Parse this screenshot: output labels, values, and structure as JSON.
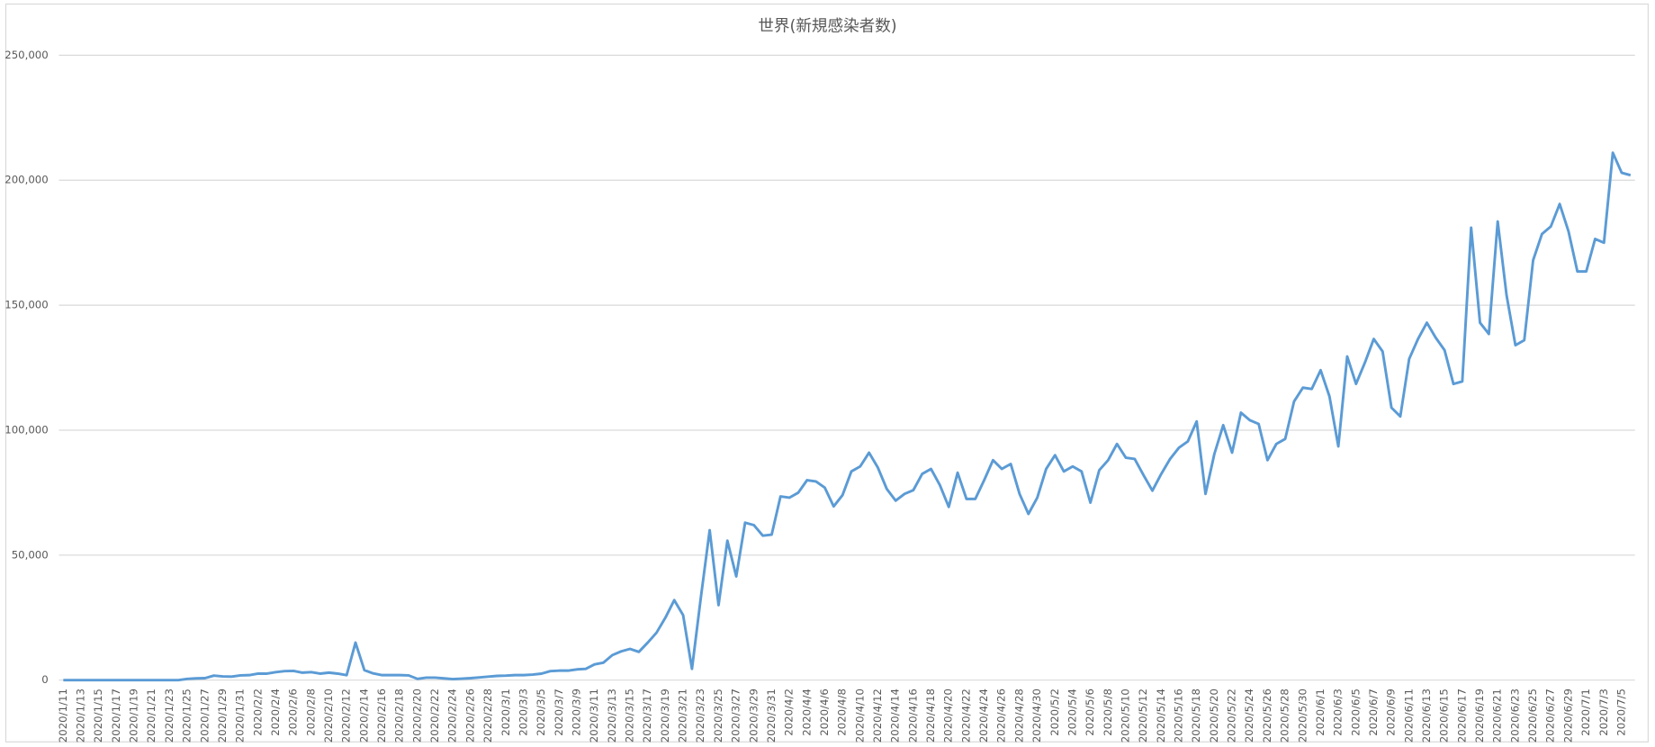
{
  "chart_data": {
    "type": "line",
    "title": "世界(新規感染者数)",
    "categories": [
      "2020/1/11",
      null,
      "2020/1/13",
      null,
      "2020/1/15",
      null,
      "2020/1/17",
      null,
      "2020/1/19",
      null,
      "2020/1/21",
      null,
      "2020/1/23",
      null,
      "2020/1/25",
      null,
      "2020/1/27",
      null,
      "2020/1/29",
      null,
      "2020/1/31",
      null,
      "2020/2/2",
      null,
      "2020/2/4",
      null,
      "2020/2/6",
      null,
      "2020/2/8",
      null,
      "2020/2/10",
      null,
      "2020/2/12",
      null,
      "2020/2/14",
      null,
      "2020/2/16",
      null,
      "2020/2/18",
      null,
      "2020/2/20",
      null,
      "2020/2/22",
      null,
      "2020/2/24",
      null,
      "2020/2/26",
      null,
      "2020/2/28",
      null,
      "2020/3/1",
      null,
      "2020/3/3",
      null,
      "2020/3/5",
      null,
      "2020/3/7",
      null,
      "2020/3/9",
      null,
      "2020/3/11",
      null,
      "2020/3/13",
      null,
      "2020/3/15",
      null,
      "2020/3/17",
      null,
      "2020/3/19",
      null,
      "2020/3/21",
      null,
      "2020/3/23",
      null,
      "2020/3/25",
      null,
      "2020/3/27",
      null,
      "2020/3/29",
      null,
      "2020/3/31",
      null,
      "2020/4/2",
      null,
      "2020/4/4",
      null,
      "2020/4/6",
      null,
      "2020/4/8",
      null,
      "2020/4/10",
      null,
      "2020/4/12",
      null,
      "2020/4/14",
      null,
      "2020/4/16",
      null,
      "2020/4/18",
      null,
      "2020/4/20",
      null,
      "2020/4/22",
      null,
      "2020/4/24",
      null,
      "2020/4/26",
      null,
      "2020/4/28",
      null,
      "2020/4/30",
      null,
      "2020/5/2",
      null,
      "2020/5/4",
      null,
      "2020/5/6",
      null,
      "2020/5/8",
      null,
      "2020/5/10",
      null,
      "2020/5/12",
      null,
      "2020/5/14",
      null,
      "2020/5/16",
      null,
      "2020/5/18",
      null,
      "2020/5/20",
      null,
      "2020/5/22",
      null,
      "2020/5/24",
      null,
      "2020/5/26",
      null,
      "2020/5/28",
      null,
      "2020/5/30",
      null,
      "2020/6/1",
      null,
      "2020/6/3",
      null,
      "2020/6/5",
      null,
      "2020/6/7",
      null,
      "2020/6/9",
      null,
      "2020/6/11",
      null,
      "2020/6/13",
      null,
      "2020/6/15",
      null,
      "2020/6/17",
      null,
      "2020/6/19",
      null,
      "2020/6/21",
      null,
      "2020/6/23",
      null,
      "2020/6/25",
      null,
      "2020/6/27",
      null,
      "2020/6/29",
      null,
      "2020/7/1",
      null,
      "2020/7/3",
      null,
      "2020/7/5",
      null
    ],
    "values": [
      0,
      0,
      0,
      0,
      0,
      0,
      0,
      0,
      0,
      0,
      0,
      0,
      0,
      0,
      500,
      700,
      800,
      1800,
      1500,
      1400,
      1900,
      2000,
      2600,
      2600,
      3200,
      3600,
      3700,
      3000,
      3200,
      2600,
      3000,
      2600,
      2000,
      15000,
      4000,
      2700,
      2000,
      2000,
      2000,
      1900,
      500,
      1000,
      1000,
      700,
      400,
      600,
      800,
      1100,
      1400,
      1700,
      1800,
      2000,
      2000,
      2200,
      2600,
      3600,
      3800,
      3800,
      4300,
      4500,
      6300,
      7000,
      10000,
      11500,
      12500,
      11300,
      15000,
      19000,
      25000,
      32000,
      26000,
      4500,
      33000,
      60000,
      30000,
      55800,
      41500,
      63000,
      62000,
      57800,
      58200,
      73500,
      73000,
      75000,
      80000,
      79500,
      77000,
      69500,
      74000,
      83500,
      85500,
      91000,
      85000,
      76500,
      71800,
      74500,
      76000,
      82500,
      84500,
      78000,
      69300,
      83000,
      72500,
      72500,
      80000,
      88000,
      84500,
      86500,
      74500,
      66500,
      73000,
      84500,
      90000,
      83500,
      85500,
      83500,
      71000,
      84000,
      88000,
      94500,
      89000,
      88500,
      82000,
      75800,
      82500,
      88500,
      93000,
      95500,
      103500,
      74500,
      90500,
      102000,
      91000,
      107000,
      104000,
      102500,
      88000,
      94500,
      96500,
      111500,
      117000,
      116500,
      124000,
      113500,
      93500,
      129500,
      118500,
      127000,
      136500,
      131500,
      109000,
      105500,
      128500,
      136500,
      143000,
      137000,
      132000,
      118500,
      119500,
      181000,
      143000,
      138500,
      183500,
      154000,
      134000,
      136000,
      168000,
      178500,
      181500,
      190500,
      179500,
      163500,
      163500,
      176500,
      175000,
      211000,
      203000,
      202000
    ],
    "color": "#5b9bd5",
    "ylim": [
      0,
      250000
    ],
    "yticks": [
      0,
      {
        "value": 50000,
        "label": "50,000"
      },
      {
        "value": 100000,
        "label": "100,000"
      },
      {
        "value": 150000,
        "label": "150,000"
      },
      {
        "value": 200000,
        "label": "200,000"
      },
      {
        "value": 250000,
        "label": "250,000"
      }
    ],
    "grid": true
  }
}
